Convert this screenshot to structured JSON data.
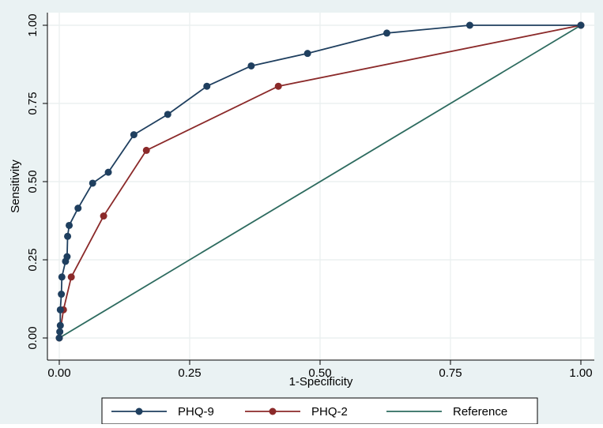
{
  "chart_data": {
    "type": "line",
    "title": "",
    "xlabel": "1-Specificity",
    "ylabel": "Sensitivity",
    "xlim": [
      0,
      1
    ],
    "ylim": [
      0,
      1
    ],
    "x_ticks": [
      "0.00",
      "0.25",
      "0.50",
      "0.75",
      "1.00"
    ],
    "y_ticks": [
      "0.00",
      "0.25",
      "0.50",
      "0.75",
      "1.00"
    ],
    "grid": true,
    "legend_position": "bottom",
    "series": [
      {
        "name": "PHQ-9",
        "color": "#1f3f5f",
        "markers": true,
        "points": [
          [
            0.0,
            0.0
          ],
          [
            0.001,
            0.02
          ],
          [
            0.002,
            0.04
          ],
          [
            0.002,
            0.09
          ],
          [
            0.004,
            0.14
          ],
          [
            0.005,
            0.195
          ],
          [
            0.012,
            0.245
          ],
          [
            0.015,
            0.26
          ],
          [
            0.016,
            0.325
          ],
          [
            0.019,
            0.36
          ],
          [
            0.036,
            0.415
          ],
          [
            0.064,
            0.495
          ],
          [
            0.094,
            0.53
          ],
          [
            0.143,
            0.65
          ],
          [
            0.208,
            0.715
          ],
          [
            0.283,
            0.805
          ],
          [
            0.368,
            0.87
          ],
          [
            0.476,
            0.91
          ],
          [
            0.628,
            0.975
          ],
          [
            0.787,
            1.0
          ],
          [
            1.0,
            1.0
          ]
        ]
      },
      {
        "name": "PHQ-2",
        "color": "#8b2a2a",
        "markers": true,
        "points": [
          [
            0.0,
            0.0
          ],
          [
            0.008,
            0.09
          ],
          [
            0.023,
            0.195
          ],
          [
            0.085,
            0.39
          ],
          [
            0.167,
            0.6
          ],
          [
            0.42,
            0.805
          ],
          [
            1.0,
            1.0
          ]
        ]
      },
      {
        "name": "Reference",
        "color": "#2d6b5f",
        "markers": false,
        "points": [
          [
            0,
            0
          ],
          [
            1,
            1
          ]
        ]
      }
    ]
  }
}
